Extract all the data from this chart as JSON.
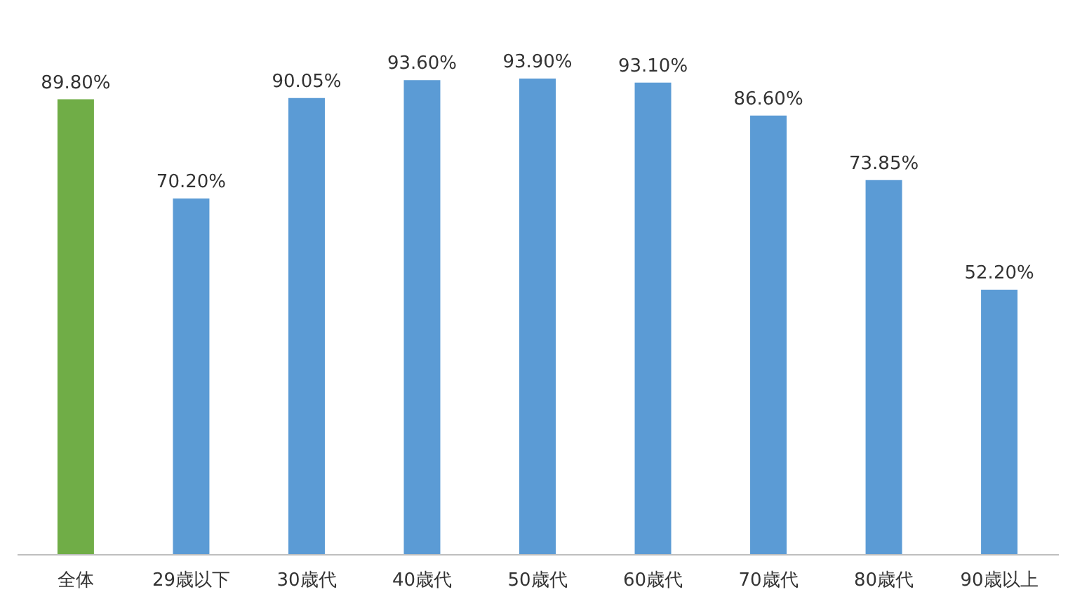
{
  "chart_data": {
    "type": "bar",
    "categories": [
      "全体",
      "29歳以下",
      "30歳代",
      "40歳代",
      "50歳代",
      "60歳代",
      "70歳代",
      "80歳代",
      "90歳以上"
    ],
    "values": [
      89.8,
      70.2,
      90.05,
      93.6,
      93.9,
      93.1,
      86.6,
      73.85,
      52.2
    ],
    "colors": [
      "#70ad47",
      "#5b9bd5",
      "#5b9bd5",
      "#5b9bd5",
      "#5b9bd5",
      "#5b9bd5",
      "#5b9bd5",
      "#5b9bd5",
      "#5b9bd5"
    ],
    "value_labels": [
      "89.80%",
      "70.20%",
      "90.05%",
      "93.60%",
      "93.90%",
      "93.10%",
      "86.60%",
      "73.85%",
      "52.20%"
    ]
  }
}
